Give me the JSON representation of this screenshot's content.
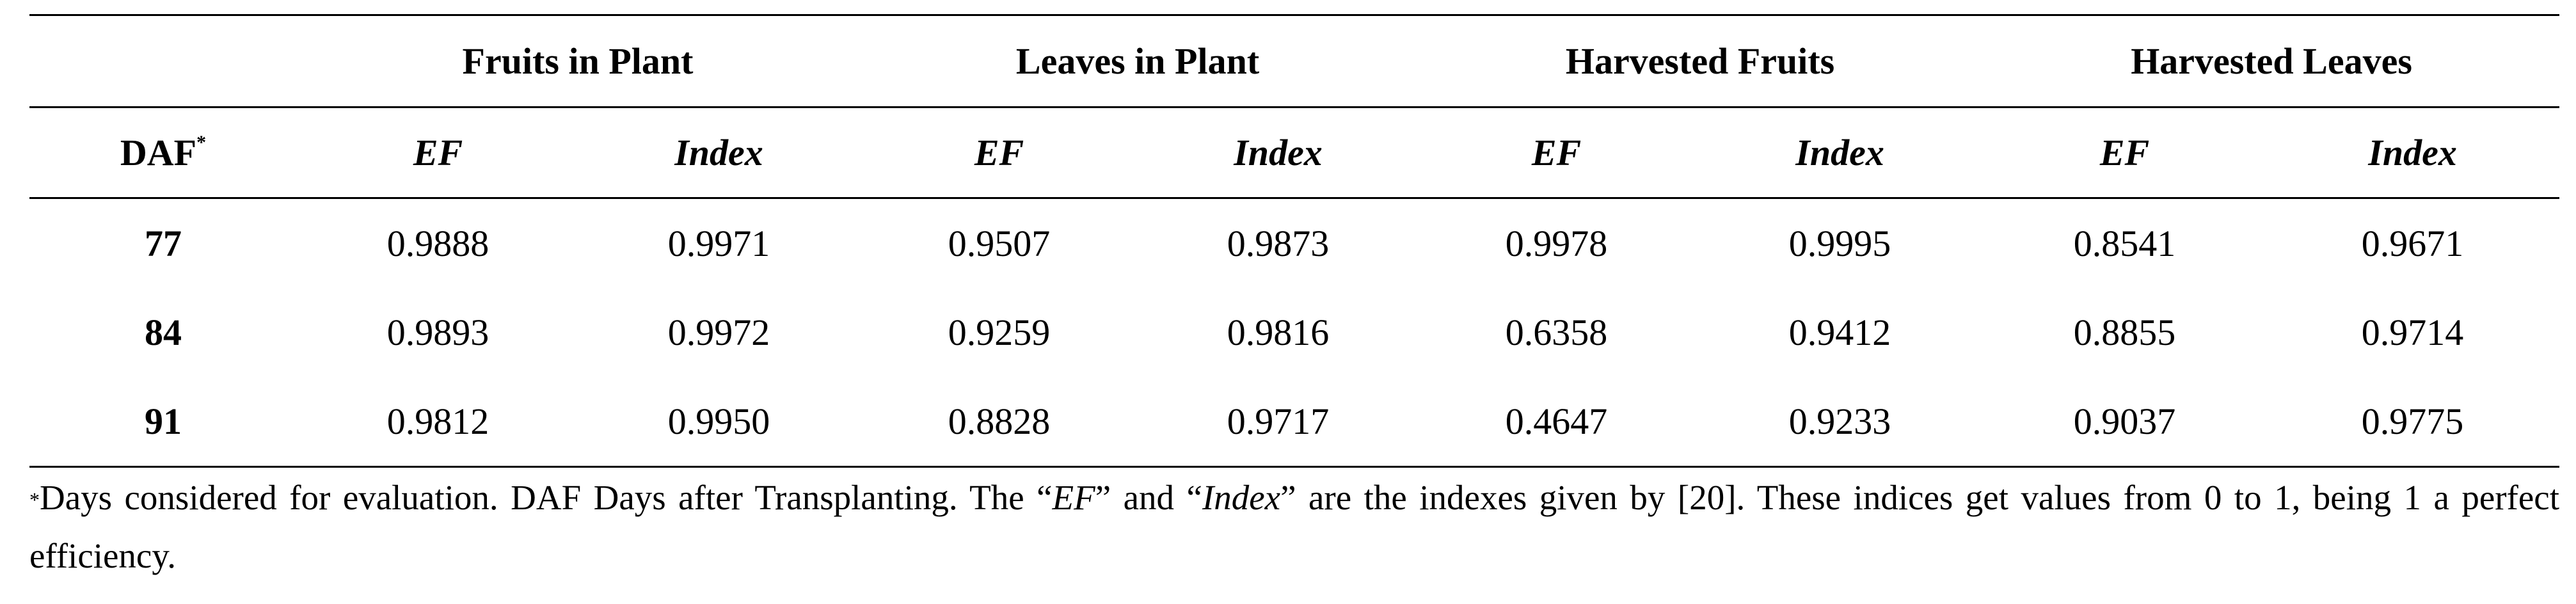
{
  "table": {
    "group_headers": [
      "Fruits in Plant",
      "Leaves in Plant",
      "Harvested Fruits",
      "Harvested Leaves"
    ],
    "row_header_label": "DAF",
    "row_header_mark": "*",
    "sub_headers": [
      "EF",
      "Index",
      "EF",
      "Index",
      "EF",
      "Index",
      "EF",
      "Index"
    ],
    "rows": [
      {
        "daf": "77",
        "values": [
          "0.9888",
          "0.9971",
          "0.9507",
          "0.9873",
          "0.9978",
          "0.9995",
          "0.8541",
          "0.9671"
        ]
      },
      {
        "daf": "84",
        "values": [
          "0.9893",
          "0.9972",
          "0.9259",
          "0.9816",
          "0.6358",
          "0.9412",
          "0.8855",
          "0.9714"
        ]
      },
      {
        "daf": "91",
        "values": [
          "0.9812",
          "0.9950",
          "0.8828",
          "0.9717",
          "0.4647",
          "0.9233",
          "0.9037",
          "0.9775"
        ]
      }
    ]
  },
  "footnote": {
    "mark": "*",
    "part1": "Days considered for evaluation. DAF Days after Transplanting. The “",
    "term1": "EF",
    "part2": "” and “",
    "term2": "Index",
    "part3": "” are the indexes given by [20]. These indices get values from 0 to 1, being 1 a perfect efficiency."
  }
}
